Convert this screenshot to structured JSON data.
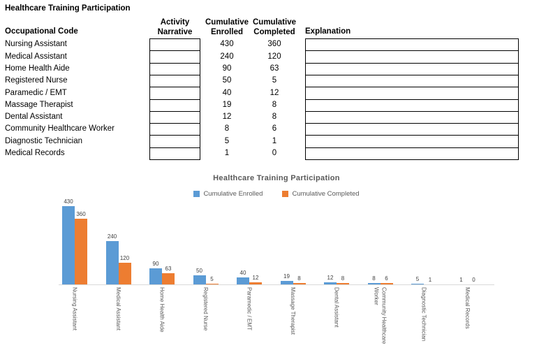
{
  "table": {
    "title": "Healthcare Training Participation",
    "row_header_label": "Occupational Code",
    "columns": {
      "activity_narrative": "Activity Narrative",
      "cumulative_enrolled": "Cumulative Enrolled",
      "cumulative_completed": "Cumulative Completed",
      "explanation": "Explanation"
    },
    "rows": [
      {
        "occupation": "Nursing Assistant",
        "narrative": "",
        "enrolled": 430,
        "completed": 360,
        "explanation": ""
      },
      {
        "occupation": "Medical Assistant",
        "narrative": "",
        "enrolled": 240,
        "completed": 120,
        "explanation": ""
      },
      {
        "occupation": "Home Health Aide",
        "narrative": "",
        "enrolled": 90,
        "completed": 63,
        "explanation": ""
      },
      {
        "occupation": "Registered Nurse",
        "narrative": "",
        "enrolled": 50,
        "completed": 5,
        "explanation": ""
      },
      {
        "occupation": "Paramedic / EMT",
        "narrative": "",
        "enrolled": 40,
        "completed": 12,
        "explanation": ""
      },
      {
        "occupation": "Massage Therapist",
        "narrative": "",
        "enrolled": 19,
        "completed": 8,
        "explanation": ""
      },
      {
        "occupation": "Dental Assistant",
        "narrative": "",
        "enrolled": 12,
        "completed": 8,
        "explanation": ""
      },
      {
        "occupation": "Community Healthcare Worker",
        "narrative": "",
        "enrolled": 8,
        "completed": 6,
        "explanation": ""
      },
      {
        "occupation": "Diagnostic Technician",
        "narrative": "",
        "enrolled": 5,
        "completed": 1,
        "explanation": ""
      },
      {
        "occupation": "Medical Records",
        "narrative": "",
        "enrolled": 1,
        "completed": 0,
        "explanation": ""
      }
    ]
  },
  "chart_data": {
    "type": "bar",
    "title": "Healthcare Training Participation",
    "categories": [
      "Nursing Assistant",
      "Medical Assistant",
      "Home Health Aide",
      "Registered Nurse",
      "Paramedic / EMT",
      "Massage Therapist",
      "Dental Assistant",
      "Community Healthcare Worker",
      "Diagnostic Technician",
      "Medical Records"
    ],
    "series": [
      {
        "name": "Cumulative Enrolled",
        "color": "#5B9BD5",
        "values": [
          430,
          240,
          90,
          50,
          40,
          19,
          12,
          8,
          5,
          1
        ]
      },
      {
        "name": "Cumulative Completed",
        "color": "#ED7D31",
        "values": [
          360,
          120,
          63,
          5,
          12,
          8,
          8,
          6,
          1,
          0
        ]
      }
    ],
    "ylim": [
      0,
      450
    ],
    "grid": false,
    "y_axis_labels": false,
    "data_labels": true,
    "legend_position": "top",
    "x_label_rotation": 90
  }
}
